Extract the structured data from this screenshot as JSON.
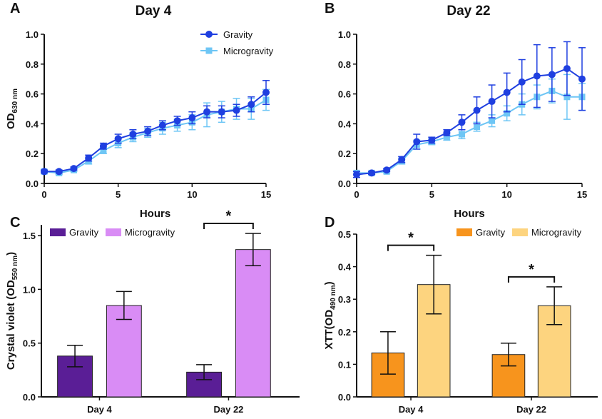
{
  "chart_data": [
    {
      "type": "line",
      "panel": "A",
      "title": "Day 4",
      "xlabel": "Hours",
      "ylabel": "OD",
      "ylabel_sub": "630 nm",
      "x": [
        0,
        1,
        2,
        3,
        4,
        5,
        6,
        7,
        8,
        9,
        10,
        11,
        12,
        13,
        14,
        15
      ],
      "series": [
        {
          "name": "Gravity",
          "color": "#1f3fe0",
          "marker": "circle",
          "values": [
            0.08,
            0.08,
            0.1,
            0.17,
            0.25,
            0.3,
            0.33,
            0.35,
            0.39,
            0.42,
            0.44,
            0.48,
            0.48,
            0.49,
            0.53,
            0.61
          ],
          "errors": [
            0.01,
            0.01,
            0.01,
            0.02,
            0.02,
            0.03,
            0.03,
            0.03,
            0.03,
            0.03,
            0.04,
            0.04,
            0.04,
            0.04,
            0.05,
            0.08
          ]
        },
        {
          "name": "Microgravity",
          "color": "#6ec6f5",
          "marker": "square",
          "values": [
            0.08,
            0.07,
            0.09,
            0.15,
            0.22,
            0.27,
            0.31,
            0.34,
            0.37,
            0.39,
            0.41,
            0.46,
            0.48,
            0.5,
            0.5,
            0.56
          ],
          "errors": [
            0.01,
            0.01,
            0.01,
            0.02,
            0.02,
            0.03,
            0.03,
            0.03,
            0.04,
            0.04,
            0.05,
            0.08,
            0.07,
            0.07,
            0.07,
            0.07
          ]
        }
      ],
      "xlim": [
        0,
        15
      ],
      "xticks": [
        0,
        5,
        10,
        15
      ],
      "ylim": [
        0,
        1
      ],
      "yticks": [
        {
          "value": 0,
          "label": "0.0"
        },
        0.2,
        0.4,
        0.6,
        0.8,
        {
          "value": 1,
          "label": "1.0"
        }
      ],
      "legend": "upper right"
    },
    {
      "type": "line",
      "panel": "B",
      "title": "Day 22",
      "xlabel": "Hours",
      "x": [
        0,
        1,
        2,
        3,
        4,
        5,
        6,
        7,
        8,
        9,
        10,
        11,
        12,
        13,
        14,
        15
      ],
      "series": [
        {
          "name": "Gravity",
          "color": "#1f3fe0",
          "marker": "circle",
          "values": [
            0.06,
            0.07,
            0.09,
            0.16,
            0.28,
            0.29,
            0.34,
            0.41,
            0.49,
            0.55,
            0.61,
            0.68,
            0.72,
            0.73,
            0.77,
            0.7
          ],
          "errors": [
            0.02,
            0.01,
            0.01,
            0.02,
            0.05,
            0.02,
            0.02,
            0.05,
            0.09,
            0.11,
            0.13,
            0.15,
            0.21,
            0.18,
            0.18,
            0.21
          ]
        },
        {
          "name": "Microgravity",
          "color": "#6ec6f5",
          "marker": "square",
          "values": [
            0.07,
            0.07,
            0.08,
            0.15,
            0.26,
            0.28,
            0.31,
            0.33,
            0.38,
            0.42,
            0.47,
            0.53,
            0.58,
            0.62,
            0.58,
            0.58
          ],
          "errors": [
            0.01,
            0.01,
            0.01,
            0.02,
            0.03,
            0.02,
            0.02,
            0.03,
            0.03,
            0.04,
            0.05,
            0.07,
            0.08,
            0.08,
            0.15,
            0.09
          ]
        }
      ],
      "xlim": [
        0,
        15
      ],
      "xticks": [
        0,
        5,
        10,
        15
      ],
      "ylim": [
        0,
        1
      ],
      "yticks": [
        {
          "value": 0,
          "label": "0.0"
        },
        0.2,
        0.4,
        0.6,
        0.8,
        {
          "value": 1,
          "label": "1.0"
        }
      ]
    },
    {
      "type": "bar",
      "panel": "C",
      "ylabel": "Crystal violet (OD",
      "ylabel_sub": "550 nm",
      "ylabel_end": ")",
      "categories": [
        "Day 4",
        "Day 22"
      ],
      "series": [
        {
          "name": "Gravity",
          "color": "#5a1e96",
          "values": [
            0.38,
            0.23
          ],
          "errors": [
            0.1,
            0.07
          ]
        },
        {
          "name": "Microgravity",
          "color": "#d98cf5",
          "values": [
            0.85,
            1.37
          ],
          "errors": [
            0.13,
            0.15
          ]
        }
      ],
      "ylim": [
        0,
        1.6
      ],
      "yticks": [
        {
          "value": 0,
          "label": "0.0"
        },
        0.5,
        {
          "value": 1,
          "label": "1.0"
        },
        1.5
      ],
      "annotations": [
        null,
        "*"
      ],
      "legend": "top"
    },
    {
      "type": "bar",
      "panel": "D",
      "ylabel": "XTT(OD",
      "ylabel_sub": "490 nm",
      "ylabel_end": ")",
      "categories": [
        "Day 4",
        "Day 22"
      ],
      "series": [
        {
          "name": "Gravity",
          "color": "#f7941d",
          "values": [
            0.135,
            0.13
          ],
          "errors": [
            0.065,
            0.035
          ]
        },
        {
          "name": "Microgravity",
          "color": "#fdd47f",
          "values": [
            0.345,
            0.28
          ],
          "errors": [
            0.09,
            0.058
          ]
        }
      ],
      "ylim": [
        0,
        0.5
      ],
      "yticks": [
        {
          "value": 0,
          "label": "0.0"
        },
        0.1,
        0.2,
        0.3,
        0.4,
        0.5
      ],
      "annotations": [
        "*",
        "*"
      ],
      "legend": "top"
    }
  ]
}
